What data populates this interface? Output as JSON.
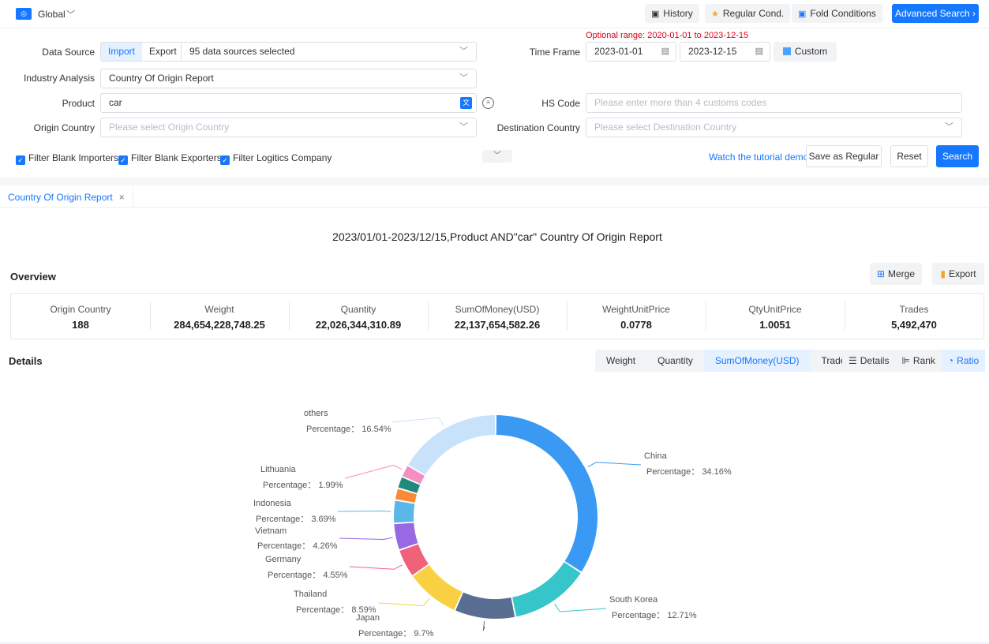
{
  "topbar": {
    "scope_label": "Global",
    "history_label": "History",
    "regular_label": "Regular Cond.",
    "fold_label": "Fold Conditions",
    "advanced_label": "Advanced Search"
  },
  "filters": {
    "optional_range": "Optional range:  2020-01-01 to 2023-12-15",
    "data_source_label": "Data Source",
    "import_label": "Import",
    "export_label": "Export",
    "sources_value": "95 data sources selected",
    "time_frame_label": "Time Frame",
    "date_from": "2023-01-01",
    "date_to": "2023-12-15",
    "custom_label": "Custom",
    "industry_label": "Industry Analysis",
    "industry_value": "Country Of Origin Report",
    "product_label": "Product",
    "product_value": "car",
    "hs_label": "HS Code",
    "hs_placeholder": "Please enter more than 4 customs codes",
    "origin_label": "Origin Country",
    "origin_placeholder": "Please select Origin Country",
    "dest_label": "Destination Country",
    "dest_placeholder": "Please select Destination Country",
    "chk_importers": "Filter Blank Importers",
    "chk_exporters": "Filter Blank Exporters",
    "chk_logistics": "Filter Logitics Company",
    "tutorial_label": "Watch the tutorial demo",
    "save_regular_label": "Save as Regular",
    "reset_label": "Reset",
    "search_label": "Search"
  },
  "report": {
    "tab_label": "Country Of Origin Report",
    "title": "2023/01/01-2023/12/15,Product AND\"car\" Country Of Origin Report",
    "overview_label": "Overview",
    "merge_label": "Merge",
    "export_label": "Export",
    "stats": [
      {
        "label": "Origin Country",
        "value": "188"
      },
      {
        "label": "Weight",
        "value": "284,654,228,748.25"
      },
      {
        "label": "Quantity",
        "value": "22,026,344,310.89"
      },
      {
        "label": "SumOfMoney(USD)",
        "value": "22,137,654,582.26"
      },
      {
        "label": "WeightUnitPrice",
        "value": "0.0778"
      },
      {
        "label": "QtyUnitPrice",
        "value": "1.0051"
      },
      {
        "label": "Trades",
        "value": "5,492,470"
      }
    ],
    "details_label": "Details",
    "metric_tabs": [
      "Weight",
      "Quantity",
      "SumOfMoney(USD)",
      "Trades"
    ],
    "active_metric": "SumOfMoney(USD)",
    "view_tabs": [
      "Details",
      "Rank",
      "Ratio"
    ],
    "active_view": "Ratio"
  },
  "chart_data": {
    "type": "pie",
    "donut": true,
    "label_prefix": "Percentage：",
    "slices": [
      {
        "name": "China",
        "value": 34.16,
        "display": "34.16%",
        "color": "#3a9af3"
      },
      {
        "name": "South Korea",
        "value": 12.71,
        "display": "12.71%",
        "color": "#36c6c9"
      },
      {
        "name": "Japan",
        "value": 9.7,
        "display": "9.7%",
        "color": "#5a6e92"
      },
      {
        "name": "Thailand",
        "value": 8.59,
        "display": "8.59%",
        "color": "#fad043"
      },
      {
        "name": "Germany",
        "value": 4.55,
        "display": "4.55%",
        "color": "#f0627a"
      },
      {
        "name": "Vietnam",
        "value": 4.26,
        "display": "4.26%",
        "color": "#9868e5"
      },
      {
        "name": "Indonesia",
        "value": 3.69,
        "display": "3.69%",
        "color": "#5ab7e8"
      },
      {
        "name": "",
        "value": 1.9,
        "display": "",
        "color": "#fb8a37"
      },
      {
        "name": "",
        "value": 1.9,
        "display": "",
        "color": "#1f8a7d"
      },
      {
        "name": "Lithuania",
        "value": 1.99,
        "display": "1.99%",
        "color": "#f58fc3"
      },
      {
        "name": "others",
        "value": 16.54,
        "display": "16.54%",
        "color": "#c9e2fb"
      }
    ]
  }
}
